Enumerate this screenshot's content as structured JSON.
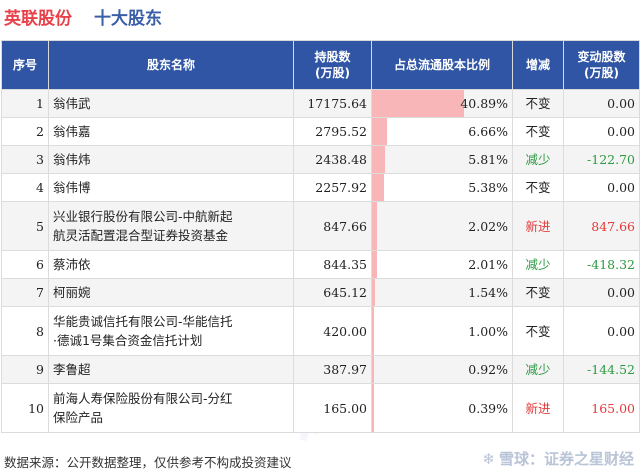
{
  "title": {
    "company": "英联股份",
    "section": "十大股东"
  },
  "columns": [
    "序号",
    "股东名称",
    "持股数\n(万股)",
    "占总流通股本比例",
    "增减",
    "变动股数\n(万股)"
  ],
  "rows": [
    {
      "idx": "1",
      "name": "翁伟武",
      "shares": "17175.64",
      "ratio_text": "40.89%",
      "ratio": 40.89,
      "trend": "不变",
      "trend_type": "same",
      "change": "0.00"
    },
    {
      "idx": "2",
      "name": "翁伟嘉",
      "shares": "2795.52",
      "ratio_text": "6.66%",
      "ratio": 6.66,
      "trend": "不变",
      "trend_type": "same",
      "change": "0.00"
    },
    {
      "idx": "3",
      "name": "翁伟炜",
      "shares": "2438.48",
      "ratio_text": "5.81%",
      "ratio": 5.81,
      "trend": "减少",
      "trend_type": "down",
      "change": "-122.70"
    },
    {
      "idx": "4",
      "name": "翁伟博",
      "shares": "2257.92",
      "ratio_text": "5.38%",
      "ratio": 5.38,
      "trend": "不变",
      "trend_type": "same",
      "change": "0.00"
    },
    {
      "idx": "5",
      "name": "兴业银行股份有限公司-中航新起航灵活配置混合型证券投资基金",
      "name_lines": [
        "兴业银行股份有限公司-中航新起",
        "航灵活配置混合型证券投资基金"
      ],
      "shares": "847.66",
      "ratio_text": "2.02%",
      "ratio": 2.02,
      "trend": "新进",
      "trend_type": "new",
      "change": "847.66"
    },
    {
      "idx": "6",
      "name": "蔡沛依",
      "shares": "844.35",
      "ratio_text": "2.01%",
      "ratio": 2.01,
      "trend": "减少",
      "trend_type": "down",
      "change": "-418.32"
    },
    {
      "idx": "7",
      "name": "柯丽婉",
      "shares": "645.12",
      "ratio_text": "1.54%",
      "ratio": 1.54,
      "trend": "不变",
      "trend_type": "same",
      "change": "0.00"
    },
    {
      "idx": "8",
      "name": "华能贵诚信托有限公司-华能信托·德诚1号集合资金信托计划",
      "name_lines": [
        "华能贵诚信托有限公司-华能信托",
        "·德诚1号集合资金信托计划"
      ],
      "shares": "420.00",
      "ratio_text": "1.00%",
      "ratio": 1.0,
      "trend": "不变",
      "trend_type": "same",
      "change": "0.00"
    },
    {
      "idx": "9",
      "name": "李鲁超",
      "shares": "387.97",
      "ratio_text": "0.92%",
      "ratio": 0.92,
      "trend": "减少",
      "trend_type": "down",
      "change": "-144.52"
    },
    {
      "idx": "10",
      "name": "前海人寿保险股份有限公司-分红保险产品",
      "name_lines": [
        "前海人寿保险股份有限公司-分红",
        "保险产品"
      ],
      "shares": "165.00",
      "ratio_text": "0.39%",
      "ratio": 0.39,
      "trend": "新进",
      "trend_type": "new",
      "change": "165.00"
    }
  ],
  "footer": {
    "source": "数据来源：公开数据整理，仅供参考不构成投资建议"
  },
  "brand": {
    "name": "雪球：证券之星财经"
  },
  "colors": {
    "header_bg": "#2f55a4",
    "bar": "#f8b6b8",
    "up": "#e33b3b",
    "down": "#2e9a43",
    "title_company": "#e8414a",
    "title_section": "#3a5fa8"
  },
  "icons": {
    "brand_logo": "snowball-icon"
  }
}
